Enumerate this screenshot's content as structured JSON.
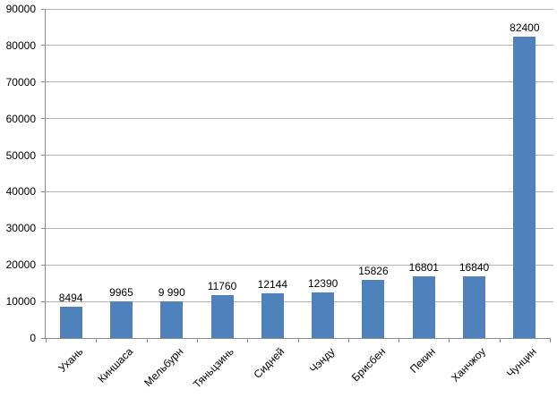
{
  "chart_data": {
    "type": "bar",
    "title": "",
    "xlabel": "",
    "ylabel": "",
    "categories": [
      "Ухань",
      "Киншаса",
      "Мельбурн",
      "Тяньцзинь",
      "Сидней",
      "Чэнду",
      "Брисбен",
      "Пекин",
      "Ханчжоу",
      "Чунцин"
    ],
    "values": [
      8494,
      9965,
      9990,
      11760,
      12144,
      12390,
      15826,
      16801,
      16840,
      82400
    ],
    "value_labels": [
      "8494",
      "9965",
      "9 990",
      "11760",
      "12144",
      "12390",
      "15826",
      "16801",
      "16840",
      "82400"
    ],
    "ylim": [
      0,
      90000
    ],
    "ytick_step": 10000,
    "ytick_labels": [
      "0",
      "10000",
      "20000",
      "30000",
      "40000",
      "50000",
      "60000",
      "70000",
      "80000",
      "90000"
    ],
    "grid": true,
    "legend": false,
    "bar_color": "#4F81BD",
    "gridline_color": "#B3B3B3",
    "axis_color": "#8C8C8C",
    "text_color": "#000000",
    "background_color": "#FFFFFF"
  }
}
